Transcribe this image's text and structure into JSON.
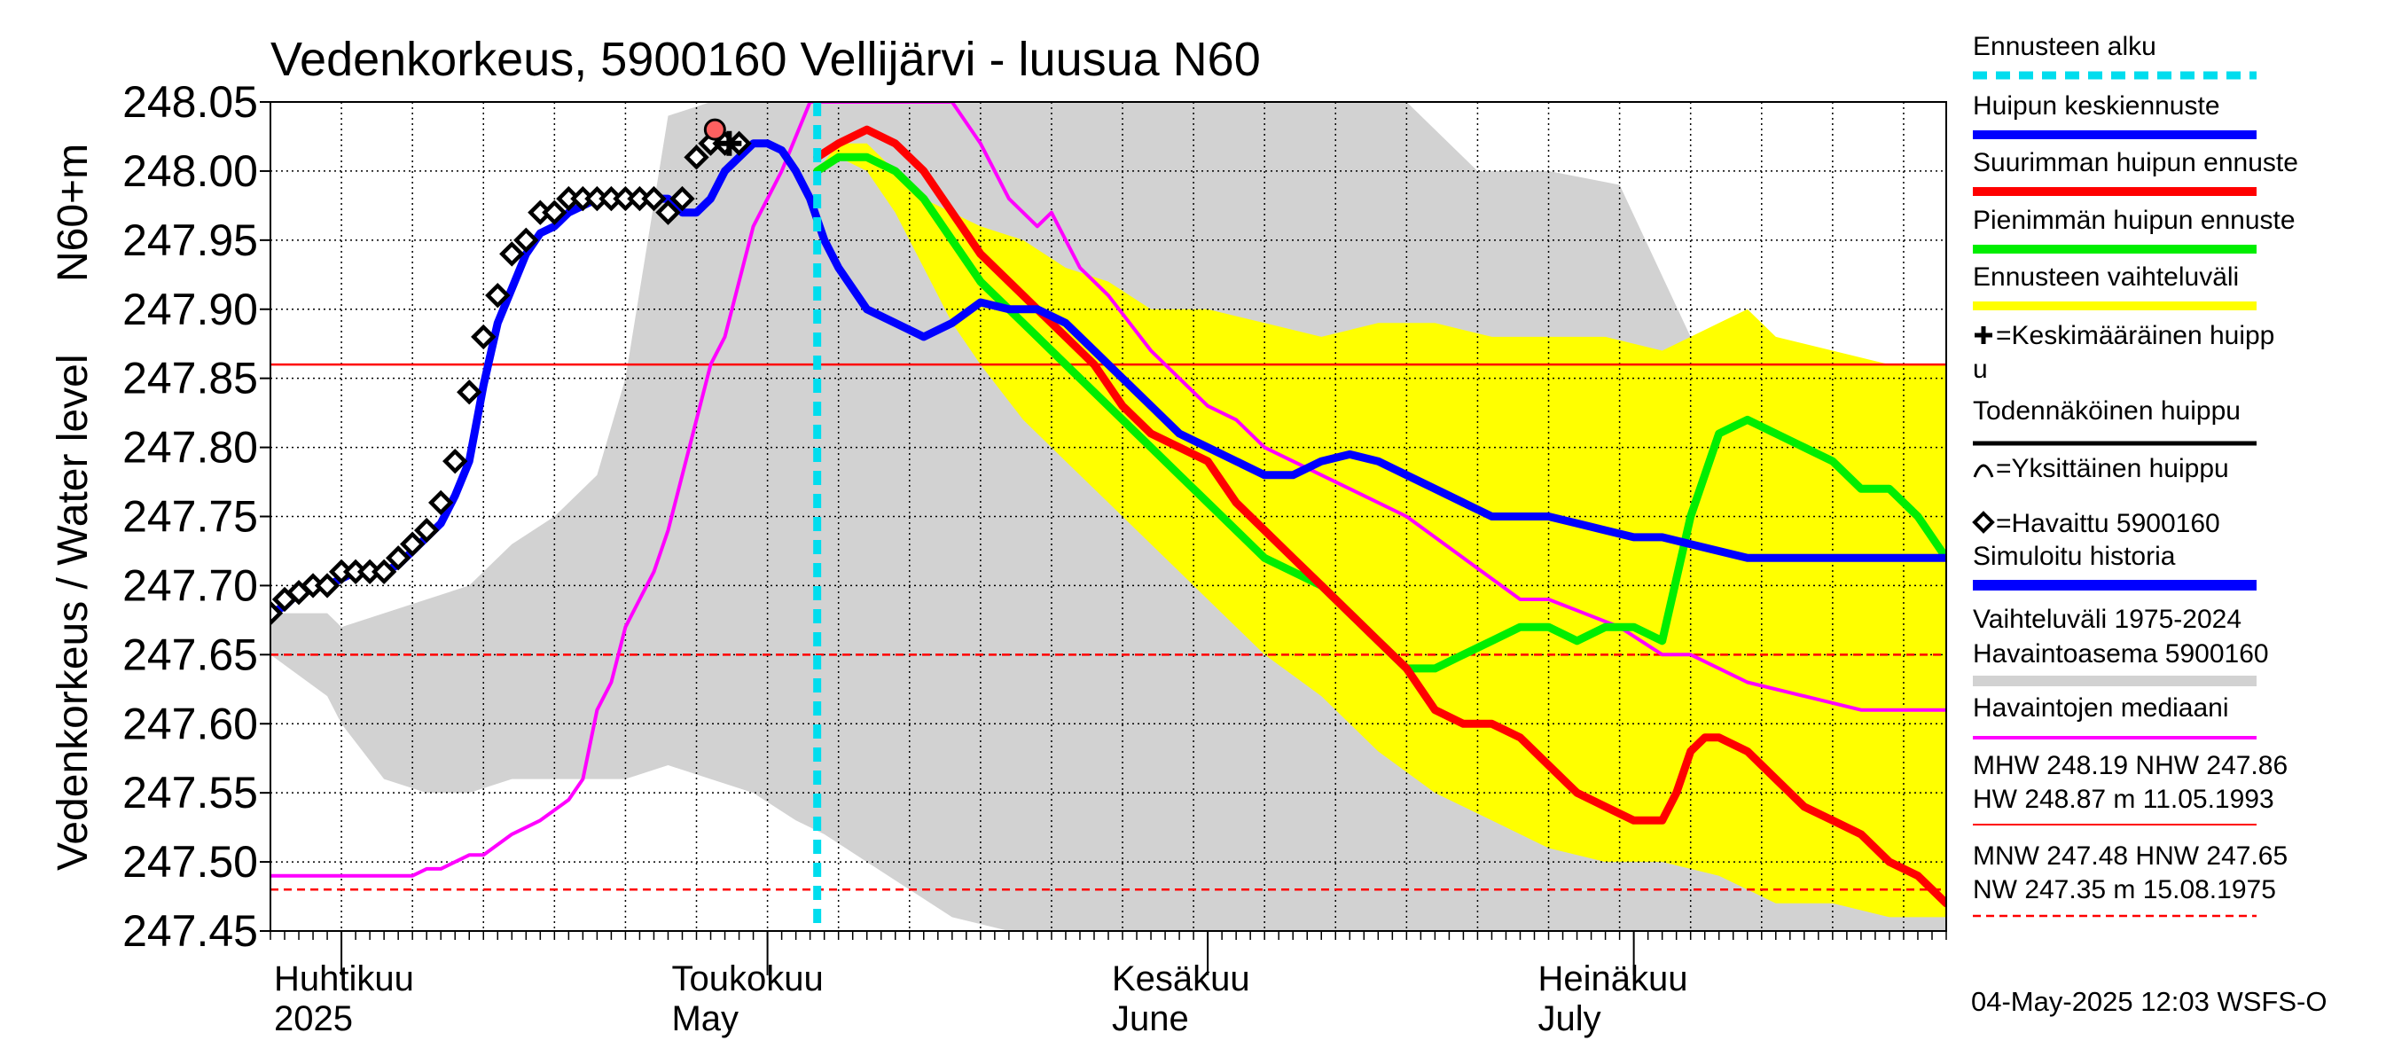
{
  "chart_data": {
    "type": "line",
    "title": "Vedenkorkeus, 5900160 Vellijärvi - luusua N60",
    "ylabel_main": "Vedenkorkeus / Water level",
    "ylabel_unit": "N60+m",
    "ylim": [
      247.45,
      248.05
    ],
    "yticks": [
      247.45,
      247.5,
      247.55,
      247.6,
      247.65,
      247.7,
      247.75,
      247.8,
      247.85,
      247.9,
      247.95,
      248.0,
      248.05
    ],
    "ytick_labels": [
      "247.45",
      "247.50",
      "247.55",
      "247.60",
      "247.65",
      "247.70",
      "247.75",
      "247.80",
      "247.85",
      "247.90",
      "247.95",
      "248.00",
      "248.05"
    ],
    "x_range_days": [
      0,
      118
    ],
    "x_unit": "days since 2025-03-27",
    "grid": true,
    "month_labels": [
      {
        "day": 0,
        "fi": "Huhtikuu",
        "en": "2025"
      },
      {
        "day": 28,
        "fi": "Toukokuu",
        "en": "May"
      },
      {
        "day": 59,
        "fi": "Kesäkuu",
        "en": "June"
      },
      {
        "day": 89,
        "fi": "Heinäkuu",
        "en": "July"
      }
    ],
    "month_boundaries": [
      5,
      35,
      66,
      96
    ],
    "forecast_start_day": 38.5,
    "reference_lines": [
      {
        "name": "NHW",
        "value": 247.86,
        "style": "solid",
        "color": "#ff0000"
      },
      {
        "name": "HNW",
        "value": 247.65,
        "style": "dashed",
        "color": "#ff0000"
      },
      {
        "name": "MNW",
        "value": 247.48,
        "style": "dashed",
        "color": "#ff0000"
      }
    ],
    "series": [
      {
        "name": "Vaihteluväli 1975-2024 Havaintoasema 5900160",
        "kind": "band",
        "color": "#d2d2d2",
        "x": [
          0,
          4,
          5,
          8,
          11,
          14,
          17,
          20,
          23,
          25,
          28,
          31,
          34,
          37,
          39,
          42,
          45,
          48,
          52,
          55,
          60,
          65,
          70,
          75,
          80,
          85,
          90,
          95,
          100,
          105,
          110,
          114,
          118
        ],
        "upper": [
          247.68,
          247.68,
          247.67,
          247.68,
          247.69,
          247.7,
          247.73,
          247.75,
          247.78,
          247.85,
          248.04,
          248.05,
          248.05,
          248.05,
          248.05,
          248.05,
          248.05,
          248.05,
          248.05,
          248.05,
          248.05,
          248.05,
          248.05,
          248.05,
          248.05,
          248.0,
          248.0,
          247.99,
          247.88,
          247.86,
          247.86,
          247.86,
          247.86
        ],
        "lower": [
          247.65,
          247.62,
          247.6,
          247.56,
          247.55,
          247.55,
          247.56,
          247.56,
          247.56,
          247.56,
          247.57,
          247.56,
          247.55,
          247.53,
          247.52,
          247.5,
          247.48,
          247.46,
          247.45,
          247.45,
          247.45,
          247.45,
          247.45,
          247.45,
          247.45,
          247.45,
          247.45,
          247.45,
          247.45,
          247.45,
          247.45,
          247.45,
          247.45
        ]
      },
      {
        "name": "Ennusteen vaihteluväli",
        "kind": "band",
        "color": "#ffff00",
        "x": [
          38.5,
          40,
          42,
          44,
          46,
          48,
          50,
          53,
          56,
          59,
          62,
          66,
          70,
          74,
          78,
          82,
          86,
          90,
          94,
          98,
          102,
          104,
          106,
          110,
          114,
          118
        ],
        "upper": [
          248.0,
          248.02,
          248.02,
          248.0,
          247.98,
          247.97,
          247.96,
          247.95,
          247.93,
          247.92,
          247.9,
          247.9,
          247.89,
          247.88,
          247.89,
          247.89,
          247.88,
          247.88,
          247.88,
          247.87,
          247.89,
          247.9,
          247.88,
          247.87,
          247.86,
          247.86
        ],
        "lower": [
          248.0,
          248.01,
          248.0,
          247.97,
          247.93,
          247.89,
          247.86,
          247.82,
          247.79,
          247.76,
          247.73,
          247.69,
          247.65,
          247.62,
          247.58,
          247.55,
          247.53,
          247.51,
          247.5,
          247.5,
          247.49,
          247.48,
          247.47,
          247.47,
          247.46,
          247.46
        ]
      },
      {
        "name": "Havaintojen mediaani",
        "kind": "line",
        "color": "#ff00ff",
        "x": [
          0,
          10,
          11,
          12,
          14,
          15,
          17,
          19,
          21,
          22,
          23,
          24,
          25,
          26,
          27,
          28,
          30,
          31,
          32,
          34,
          36,
          38,
          40,
          43,
          46,
          48,
          50,
          51,
          52,
          54,
          55,
          57,
          58,
          59,
          62,
          65,
          66,
          68,
          70,
          72,
          76,
          80,
          84,
          88,
          90,
          95,
          98,
          100,
          104,
          108,
          112,
          118
        ],
        "y": [
          247.49,
          247.49,
          247.495,
          247.495,
          247.505,
          247.505,
          247.52,
          247.53,
          247.545,
          247.56,
          247.61,
          247.63,
          247.67,
          247.69,
          247.71,
          247.74,
          247.82,
          247.86,
          247.88,
          247.96,
          248.0,
          248.05,
          248.05,
          248.05,
          248.05,
          248.05,
          248.02,
          248.0,
          247.98,
          247.96,
          247.97,
          247.93,
          247.92,
          247.91,
          247.87,
          247.84,
          247.83,
          247.82,
          247.8,
          247.79,
          247.77,
          247.75,
          247.72,
          247.69,
          247.69,
          247.67,
          247.65,
          247.65,
          247.63,
          247.62,
          247.61,
          247.61
        ]
      },
      {
        "name": "Pienimmän huipun ennuste",
        "kind": "line",
        "color": "#00ee00",
        "x": [
          38.5,
          40,
          42,
          44,
          46,
          48,
          50,
          52,
          54,
          56,
          58,
          60,
          62,
          64,
          66,
          68,
          70,
          72,
          74,
          76,
          78,
          80,
          82,
          84,
          86,
          88,
          90,
          92,
          94,
          96,
          98,
          100,
          102,
          104,
          106,
          108,
          110,
          112,
          114,
          116,
          118
        ],
        "y": [
          248.0,
          248.01,
          248.01,
          248.0,
          247.98,
          247.95,
          247.92,
          247.9,
          247.88,
          247.86,
          247.84,
          247.82,
          247.8,
          247.78,
          247.76,
          247.74,
          247.72,
          247.71,
          247.7,
          247.68,
          247.66,
          247.64,
          247.64,
          247.65,
          247.66,
          247.67,
          247.67,
          247.66,
          247.67,
          247.67,
          247.66,
          247.75,
          247.81,
          247.82,
          247.81,
          247.8,
          247.79,
          247.77,
          247.77,
          247.75,
          247.72
        ]
      },
      {
        "name": "Suurimman huipun ennuste",
        "kind": "line",
        "color": "#ff0000",
        "x": [
          38.5,
          40,
          42,
          44,
          46,
          48,
          50,
          52,
          54,
          56,
          58,
          60,
          62,
          64,
          66,
          68,
          70,
          72,
          74,
          76,
          78,
          80,
          82,
          84,
          86,
          88,
          90,
          92,
          94,
          96,
          98,
          99,
          100,
          101,
          102,
          104,
          106,
          108,
          110,
          112,
          114,
          116,
          118
        ],
        "y": [
          248.01,
          248.02,
          248.03,
          248.02,
          248.0,
          247.97,
          247.94,
          247.92,
          247.9,
          247.88,
          247.86,
          247.83,
          247.81,
          247.8,
          247.79,
          247.76,
          247.74,
          247.72,
          247.7,
          247.68,
          247.66,
          247.64,
          247.61,
          247.6,
          247.6,
          247.59,
          247.57,
          247.55,
          247.54,
          247.53,
          247.53,
          247.55,
          247.58,
          247.59,
          247.59,
          247.58,
          247.56,
          247.54,
          247.53,
          247.52,
          247.5,
          247.49,
          247.47
        ]
      },
      {
        "name": "Huipun keskiennuste",
        "kind": "line",
        "color": "#0000ff",
        "x": [
          0,
          1,
          2,
          3,
          4,
          5,
          6,
          7,
          8,
          9,
          10,
          11,
          12,
          13,
          14,
          15,
          16,
          17,
          18,
          19,
          20,
          21,
          22,
          23,
          24,
          25,
          26,
          27,
          28,
          29,
          30,
          31,
          32,
          33,
          34,
          35,
          36,
          37,
          38,
          39,
          40,
          42,
          44,
          46,
          48,
          50,
          52,
          54,
          56,
          58,
          60,
          62,
          64,
          66,
          68,
          70,
          72,
          74,
          76,
          78,
          80,
          82,
          84,
          86,
          88,
          90,
          92,
          94,
          96,
          98,
          100,
          102,
          104,
          106,
          108,
          110,
          112,
          114,
          116,
          118
        ],
        "y": [
          247.68,
          247.685,
          247.695,
          247.7,
          247.7,
          247.705,
          247.71,
          247.71,
          247.71,
          247.715,
          247.725,
          247.735,
          247.745,
          247.765,
          247.79,
          247.845,
          247.89,
          247.915,
          247.94,
          247.955,
          247.96,
          247.97,
          247.975,
          247.98,
          247.98,
          247.98,
          247.98,
          247.98,
          247.98,
          247.97,
          247.97,
          247.98,
          248.0,
          248.01,
          248.02,
          248.02,
          248.015,
          248.0,
          247.98,
          247.95,
          247.93,
          247.9,
          247.89,
          247.88,
          247.89,
          247.905,
          247.9,
          247.9,
          247.89,
          247.87,
          247.85,
          247.83,
          247.81,
          247.8,
          247.79,
          247.78,
          247.78,
          247.79,
          247.795,
          247.79,
          247.78,
          247.77,
          247.76,
          247.75,
          247.75,
          247.75,
          247.745,
          247.74,
          247.735,
          247.735,
          247.73,
          247.725,
          247.72,
          247.72,
          247.72,
          247.72,
          247.72,
          247.72,
          247.72,
          247.72
        ]
      },
      {
        "name": "Havaittu 5900160",
        "kind": "markers",
        "color": "#000000",
        "x": [
          0,
          1,
          2,
          3,
          4,
          5,
          6,
          7,
          8,
          9,
          10,
          11,
          12,
          13,
          14,
          15,
          16,
          17,
          18,
          19,
          20,
          21,
          22,
          23,
          24,
          25,
          26,
          27,
          28,
          29,
          30,
          31,
          32,
          33
        ],
        "y": [
          247.68,
          247.69,
          247.695,
          247.7,
          247.7,
          247.71,
          247.71,
          247.71,
          247.71,
          247.72,
          247.73,
          247.74,
          247.76,
          247.79,
          247.84,
          247.88,
          247.91,
          247.94,
          247.95,
          247.97,
          247.97,
          247.98,
          247.98,
          247.98,
          247.98,
          247.98,
          247.98,
          247.98,
          247.97,
          247.98,
          248.01,
          248.02,
          248.02,
          248.02
        ]
      },
      {
        "name": "Keskimääräinen huippu",
        "kind": "plus",
        "color": "#000000",
        "x": [
          32.3
        ],
        "y": [
          248.02
        ]
      },
      {
        "name": "Yksittäinen huippu",
        "kind": "arc",
        "color": "#000000",
        "x": [
          31.3
        ],
        "y": [
          248.03
        ]
      }
    ],
    "legend": [
      {
        "label": "Ennusteen alku",
        "style": "dash",
        "color": "#00ddee"
      },
      {
        "label": "Huipun keskiennuste",
        "style": "line",
        "color": "#0000ff"
      },
      {
        "label": "Suurimman huipun ennuste",
        "style": "line",
        "color": "#ff0000"
      },
      {
        "label": "Pienimmän huipun ennuste",
        "style": "line",
        "color": "#00ee00"
      },
      {
        "label": "Ennusteen vaihteluväli",
        "style": "line",
        "color": "#ffff00"
      },
      {
        "label": "=Keskimääräinen huipp",
        "label2": "u",
        "style": "plus",
        "color": "#000000"
      },
      {
        "label": "Todennäköinen huippu",
        "style": "line",
        "color": "#000000"
      },
      {
        "label": "=Yksittäinen huippu",
        "style": "arc",
        "color": "#000000"
      },
      {
        "label": "=Havaittu 5900160",
        "style": "diamond",
        "color": "#000000"
      },
      {
        "label": "Simuloitu historia",
        "style": "line",
        "color": "#0000ff"
      },
      {
        "label": "Vaihteluväli 1975-2024",
        "label2": " Havaintoasema 5900160",
        "style": "line",
        "color": "#d2d2d2"
      },
      {
        "label": "Havaintojen mediaani",
        "style": "line",
        "color": "#ff00ff"
      },
      {
        "label": "MHW 248.19 NHW 247.86",
        "label2": "HW 248.87 m 11.05.1993",
        "style": "line",
        "color": "#ff0000"
      },
      {
        "label": "MNW 247.48 HNW 247.65",
        "label2": "NW 247.35 m 15.08.1975",
        "style": "dash",
        "color": "#ff0000"
      }
    ],
    "footer": "04-May-2025 12:03 WSFS-O"
  }
}
